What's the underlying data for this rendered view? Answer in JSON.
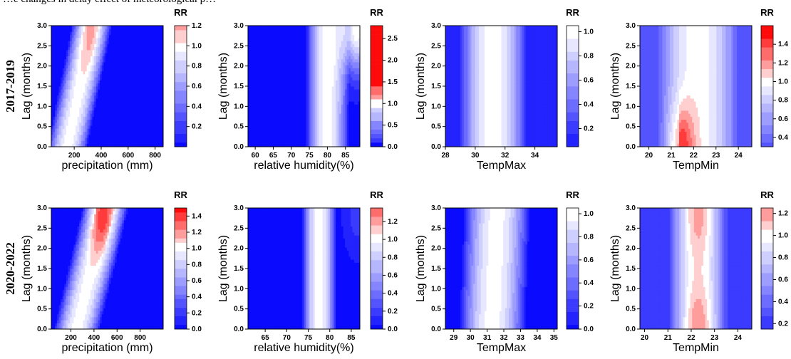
{
  "caption_fragment": "…e changes in delay effect of meteorological p…",
  "rows": [
    "2017-2019",
    "2020-2022"
  ],
  "chart_data": [
    {
      "type": "heatmap",
      "row": "2017-2019",
      "xlabel": "precipitation (mm)",
      "ylabel": "Lag (months)",
      "legend_title": "RR",
      "xlim": [
        30,
        860
      ],
      "ylim": [
        0,
        3
      ],
      "xticks": [
        200,
        400,
        600,
        800
      ],
      "yticks": [
        "0.0",
        "0.5",
        "1.0",
        "1.5",
        "2.0",
        "2.5",
        "3.0"
      ],
      "legend_range": [
        0.0,
        1.2
      ],
      "legend_ticks": [
        "0.2",
        "0.4",
        "0.6",
        "0.8",
        "1.0",
        "1.2"
      ],
      "hot_spots": [
        {
          "x": 320,
          "lag": 2.9,
          "rr": 1.2
        }
      ],
      "ridge_x": [
        150,
        330
      ],
      "ridge_width": 150,
      "cold_rr": 0.0
    },
    {
      "type": "heatmap",
      "row": "2017-2019",
      "xlabel": "relative humidity(%)",
      "ylabel": "Lag (months)",
      "legend_title": "RR",
      "xlim": [
        58,
        89
      ],
      "ylim": [
        0,
        3
      ],
      "xticks": [
        60,
        65,
        70,
        75,
        80,
        85
      ],
      "yticks": [
        "0.0",
        "0.5",
        "1.0",
        "1.5",
        "2.0",
        "2.5",
        "3.0"
      ],
      "legend_range": [
        0.0,
        2.8
      ],
      "legend_ticks": [
        "0.0",
        "0.5",
        "1.0",
        "1.5",
        "2.0",
        "2.5"
      ],
      "hot_spots": [
        {
          "x": 88,
          "lag": 2.9,
          "rr": 2.7
        }
      ],
      "ridge_x": [
        80,
        80
      ],
      "ridge_width": 6,
      "cold_rr": 0.0
    },
    {
      "type": "heatmap",
      "row": "2017-2019",
      "xlabel": "TempMax",
      "ylabel": "Lag (months)",
      "legend_title": "RR",
      "xlim": [
        28,
        35.5
      ],
      "ylim": [
        0,
        3
      ],
      "xticks": [
        28,
        30,
        32,
        34
      ],
      "yticks": [
        "0.0",
        "0.5",
        "1.0",
        "1.5",
        "2.0",
        "2.5",
        "3.0"
      ],
      "legend_range": [
        0.05,
        1.05
      ],
      "legend_ticks": [
        "0.2",
        "0.4",
        "0.6",
        "0.8",
        "1.0"
      ],
      "hot_spots": [],
      "ridge_x": [
        31.2,
        31.2
      ],
      "ridge_width": 2.3,
      "cold_rr": 0.05
    },
    {
      "type": "heatmap",
      "row": "2017-2019",
      "xlabel": "TempMin",
      "ylabel": "Lag (months)",
      "legend_title": "RR",
      "xlim": [
        19.6,
        24.6
      ],
      "ylim": [
        0,
        3
      ],
      "xticks": [
        20,
        21,
        22,
        23,
        24
      ],
      "yticks": [
        "0.0",
        "0.5",
        "1.0",
        "1.5",
        "2.0",
        "2.5",
        "3.0"
      ],
      "legend_range": [
        0.3,
        1.6
      ],
      "legend_ticks": [
        "0.4",
        "0.6",
        "0.8",
        "1.0",
        "1.2",
        "1.4"
      ],
      "hot_spots": [
        {
          "x": 21.4,
          "lag": 0.0,
          "rr": 1.55
        }
      ],
      "ridge_x": [
        22.2,
        22.2
      ],
      "ridge_width": 1.8,
      "cold_rr": 0.3
    },
    {
      "type": "heatmap",
      "row": "2020-2022",
      "xlabel": "precipitation (mm)",
      "ylabel": "Lag (months)",
      "legend_title": "RR",
      "xlim": [
        30,
        1000
      ],
      "ylim": [
        0,
        3
      ],
      "xticks": [
        200,
        400,
        600,
        800
      ],
      "yticks": [
        "0.0",
        "0.5",
        "1.0",
        "1.5",
        "2.0",
        "2.5",
        "3.0"
      ],
      "legend_range": [
        0.0,
        1.5
      ],
      "legend_ticks": [
        "0.0",
        "0.2",
        "0.4",
        "0.6",
        "0.8",
        "1.0",
        "1.2",
        "1.4"
      ],
      "hot_spots": [
        {
          "x": 470,
          "lag": 2.9,
          "rr": 1.45
        }
      ],
      "ridge_x": [
        250,
        500
      ],
      "ridge_width": 200,
      "cold_rr": 0.0
    },
    {
      "type": "heatmap",
      "row": "2020-2022",
      "xlabel": "relative humidity(%)",
      "ylabel": "Lag (months)",
      "legend_title": "RR",
      "xlim": [
        61,
        87
      ],
      "ylim": [
        0,
        3
      ],
      "xticks": [
        65,
        70,
        75,
        80,
        85
      ],
      "yticks": [
        "0.0",
        "0.5",
        "1.0",
        "1.5",
        "2.0",
        "2.5",
        "3.0"
      ],
      "legend_range": [
        0.0,
        1.35
      ],
      "legend_ticks": [
        "0.0",
        "0.2",
        "0.4",
        "0.6",
        "0.8",
        "1.0",
        "1.2"
      ],
      "hot_spots": [
        {
          "x": 86.5,
          "lag": 2.9,
          "rr": 1.35
        }
      ],
      "ridge_x": [
        77.5,
        77.5
      ],
      "ridge_width": 4,
      "cold_rr": 0.0
    },
    {
      "type": "heatmap",
      "row": "2020-2022",
      "xlabel": "TempMax",
      "ylabel": "Lag (months)",
      "legend_title": "RR",
      "xlim": [
        28.5,
        35.2
      ],
      "ylim": [
        0,
        3
      ],
      "xticks": [
        29,
        30,
        31,
        32,
        33,
        34,
        35
      ],
      "yticks": [
        "0.0",
        "0.5",
        "1.0",
        "1.5",
        "2.0",
        "2.5",
        "3.0"
      ],
      "legend_range": [
        0.0,
        1.05
      ],
      "legend_ticks": [
        "0.0",
        "0.2",
        "0.4",
        "0.6",
        "0.8",
        "1.0"
      ],
      "hot_spots": [],
      "ridge_x": [
        31.3,
        31.6
      ],
      "ridge_width": 2.0,
      "cold_rr": 0.0
    },
    {
      "type": "heatmap",
      "row": "2020-2022",
      "xlabel": "TempMin",
      "ylabel": "Lag (months)",
      "legend_title": "RR",
      "xlim": [
        19.8,
        24.6
      ],
      "ylim": [
        0,
        3
      ],
      "xticks": [
        20,
        21,
        22,
        23,
        24
      ],
      "yticks": [
        "0.0",
        "0.5",
        "1.0",
        "1.5",
        "2.0",
        "2.5",
        "3.0"
      ],
      "legend_range": [
        0.15,
        1.25
      ],
      "legend_ticks": [
        "0.2",
        "0.4",
        "0.6",
        "0.8",
        "1.0",
        "1.2"
      ],
      "hot_spots": [
        {
          "x": 22.3,
          "lag": 2.85,
          "rr": 1.2
        },
        {
          "x": 22.3,
          "lag": 0.0,
          "rr": 1.25
        }
      ],
      "ridge_x": [
        22.3,
        22.3
      ],
      "ridge_width": 1.3,
      "cold_rr": 0.15
    }
  ]
}
